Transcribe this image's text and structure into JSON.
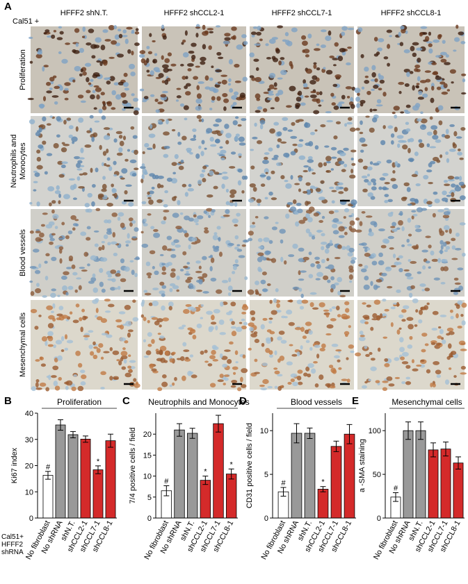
{
  "figure": {
    "panel_label": "A",
    "cell_line": "Cal51 +",
    "columns": [
      "HFFF2 shN.T.",
      "HFFF2 shCCL2-1",
      "HFFF2 shCCL7-1",
      "HFFF2 shCCL8-1"
    ],
    "rows": [
      [
        "Proliferation"
      ],
      [
        "Neutrophils and",
        "Monocytes"
      ],
      [
        "Blood vessels"
      ],
      [
        "Mesenchymal cells"
      ]
    ]
  },
  "chart_data": [
    {
      "type": "bar",
      "panel_label": "B",
      "title": "Proliferation",
      "y_label": "Ki67 index",
      "x_label_lines": [
        "Cal51+",
        "HFFF2",
        "shRNA"
      ],
      "categories": [
        "No fibroblast",
        "No shRNA",
        "shN.T.",
        "shCCL2-1",
        "shCCL7-1",
        "shCCL8-1"
      ],
      "values": [
        16.3,
        35.5,
        31.8,
        30.1,
        18.4,
        29.5
      ],
      "errors": [
        1.5,
        2,
        1.2,
        1.2,
        1.5,
        2.5
      ],
      "colors": [
        "#ffffff",
        "#999999",
        "#999999",
        "#d42a2a",
        "#d42a2a",
        "#d42a2a"
      ],
      "markers": [
        "#",
        null,
        null,
        null,
        "*",
        null
      ],
      "ylim": [
        0,
        40
      ],
      "yticks": [
        0,
        10,
        20,
        30,
        40
      ]
    },
    {
      "type": "bar",
      "panel_label": "C",
      "title": "Neutrophils and Monocytes",
      "y_label": "7/4 positive cells / field",
      "categories": [
        "No fibroblast",
        "No shRNA",
        "shN.T.",
        "shCCL2-1",
        "shCCL7-1",
        "shCCL8-1"
      ],
      "values": [
        6.5,
        21,
        20.2,
        9,
        22.5,
        10.5
      ],
      "errors": [
        1.2,
        1.5,
        1.2,
        1,
        2,
        1.2
      ],
      "colors": [
        "#ffffff",
        "#999999",
        "#999999",
        "#d42a2a",
        "#d42a2a",
        "#d42a2a"
      ],
      "markers": [
        "#",
        null,
        null,
        "*",
        null,
        "*"
      ],
      "ylim": [
        0,
        25
      ],
      "yticks": [
        0,
        5,
        10,
        15,
        20
      ]
    },
    {
      "type": "bar",
      "panel_label": "D",
      "title": "Blood vessels",
      "y_label": "CD31 positive cells / field",
      "categories": [
        "No fibroblast",
        "No shRNA",
        "shN.T.",
        "shCCL2-1",
        "shCCL7-1",
        "shCCL8-1"
      ],
      "values": [
        3,
        9.7,
        9.7,
        3.3,
        8.2,
        9.6
      ],
      "errors": [
        0.5,
        1.1,
        0.6,
        0.3,
        0.6,
        1.1
      ],
      "colors": [
        "#ffffff",
        "#999999",
        "#999999",
        "#d42a2a",
        "#d42a2a",
        "#d42a2a"
      ],
      "markers": [
        "#",
        null,
        null,
        "*",
        null,
        null
      ],
      "ylim": [
        0,
        12
      ],
      "yticks": [
        0,
        5,
        10
      ]
    },
    {
      "type": "bar",
      "panel_label": "E",
      "title": "Mesenchymal cells",
      "y_label": "a -SMA staining",
      "categories": [
        "No fibroblast",
        "No shRNA",
        "shN.T.",
        "shCCL2-1",
        "shCCL7-1",
        "shCCL8-1"
      ],
      "values": [
        24,
        100,
        100,
        78,
        79,
        63
      ],
      "errors": [
        5,
        10,
        10,
        8,
        8,
        7
      ],
      "colors": [
        "#ffffff",
        "#999999",
        "#999999",
        "#d42a2a",
        "#d42a2a",
        "#d42a2a"
      ],
      "markers": [
        "#",
        null,
        null,
        null,
        null,
        null
      ],
      "ylim": [
        0,
        120
      ],
      "yticks": [
        0,
        50,
        100
      ]
    }
  ]
}
